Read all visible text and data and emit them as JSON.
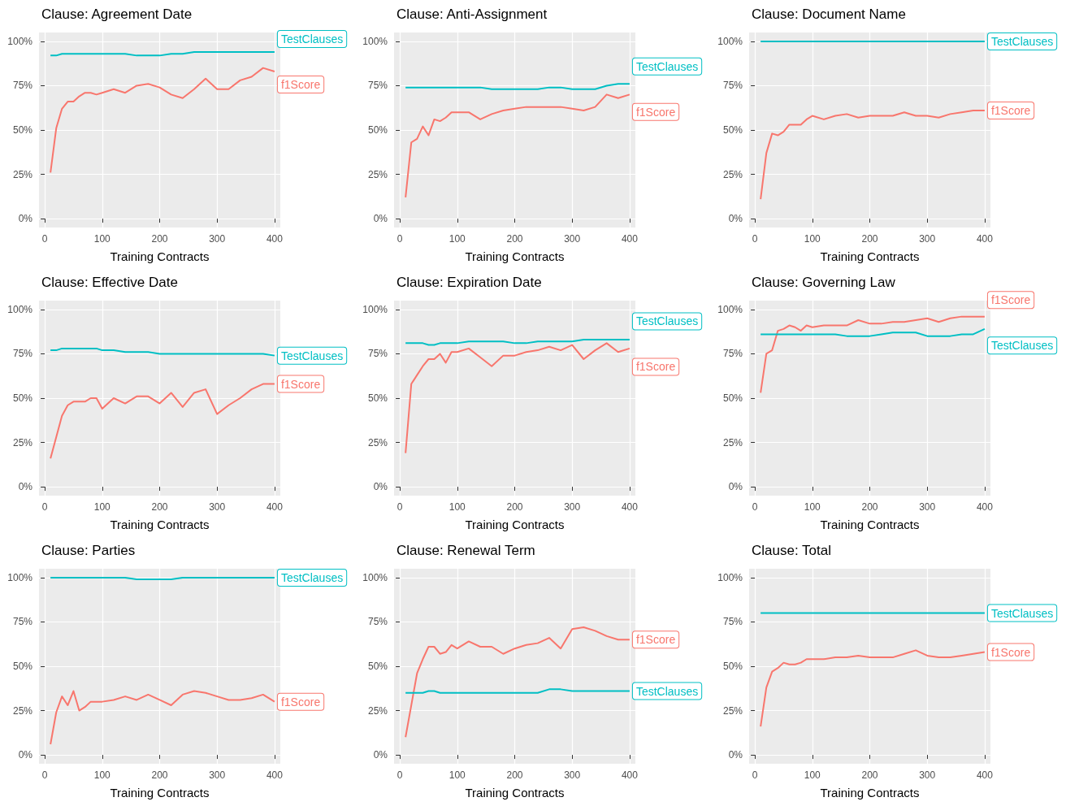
{
  "chart_data": [
    {
      "type": "line",
      "title": "Clause: Agreement Date",
      "xlabel": "Training Contracts",
      "x": [
        10,
        20,
        30,
        40,
        50,
        60,
        70,
        80,
        90,
        100,
        120,
        140,
        160,
        180,
        200,
        220,
        240,
        260,
        280,
        300,
        320,
        340,
        360,
        380,
        400
      ],
      "xlim": [
        -10,
        410
      ],
      "xticks": [
        0,
        100,
        200,
        300,
        400
      ],
      "ylim": [
        -5,
        105
      ],
      "yticks": [
        {
          "value": 0,
          "label": "0%"
        },
        {
          "value": 25,
          "label": "25%"
        },
        {
          "value": 50,
          "label": "50%"
        },
        {
          "value": 75,
          "label": "75%"
        },
        {
          "value": 100,
          "label": "100%"
        }
      ],
      "grid": true,
      "legend": false,
      "marker": "none",
      "series": [
        {
          "name": "f1Score",
          "color": "#f8766d",
          "values": [
            26,
            51,
            62,
            66,
            66,
            69,
            71,
            71,
            70,
            71,
            73,
            71,
            75,
            76,
            74,
            70,
            68,
            73,
            79,
            73,
            73,
            78,
            80,
            85,
            83
          ]
        },
        {
          "name": "TestClauses",
          "color": "#00bfc4",
          "values": [
            92,
            92,
            93,
            93,
            93,
            93,
            93,
            93,
            93,
            93,
            93,
            93,
            92,
            92,
            92,
            93,
            93,
            94,
            94,
            94,
            94,
            94,
            94,
            94,
            94
          ]
        }
      ]
    },
    {
      "type": "line",
      "title": "Clause: Anti-Assignment",
      "xlabel": "Training Contracts",
      "x": [
        10,
        20,
        30,
        40,
        50,
        60,
        70,
        80,
        90,
        100,
        120,
        140,
        160,
        180,
        200,
        220,
        240,
        260,
        280,
        300,
        320,
        340,
        360,
        380,
        400
      ],
      "xlim": [
        -10,
        410
      ],
      "xticks": [
        0,
        100,
        200,
        300,
        400
      ],
      "ylim": [
        -5,
        105
      ],
      "yticks": [
        {
          "value": 0,
          "label": "0%"
        },
        {
          "value": 25,
          "label": "25%"
        },
        {
          "value": 50,
          "label": "50%"
        },
        {
          "value": 75,
          "label": "75%"
        },
        {
          "value": 100,
          "label": "100%"
        }
      ],
      "grid": true,
      "legend": false,
      "marker": "none",
      "series": [
        {
          "name": "f1Score",
          "color": "#f8766d",
          "values": [
            12,
            43,
            45,
            52,
            47,
            56,
            55,
            57,
            60,
            60,
            60,
            56,
            59,
            61,
            62,
            63,
            63,
            63,
            63,
            62,
            61,
            63,
            70,
            68,
            70
          ]
        },
        {
          "name": "TestClauses",
          "color": "#00bfc4",
          "values": [
            74,
            74,
            74,
            74,
            74,
            74,
            74,
            74,
            74,
            74,
            74,
            74,
            73,
            73,
            73,
            73,
            73,
            74,
            74,
            73,
            73,
            73,
            75,
            76,
            76
          ]
        }
      ]
    },
    {
      "type": "line",
      "title": "Clause: Document Name",
      "xlabel": "Training Contracts",
      "x": [
        10,
        20,
        30,
        40,
        50,
        60,
        70,
        80,
        90,
        100,
        120,
        140,
        160,
        180,
        200,
        220,
        240,
        260,
        280,
        300,
        320,
        340,
        360,
        380,
        400
      ],
      "xlim": [
        -10,
        410
      ],
      "xticks": [
        0,
        100,
        200,
        300,
        400
      ],
      "ylim": [
        -5,
        105
      ],
      "yticks": [
        {
          "value": 0,
          "label": "0%"
        },
        {
          "value": 25,
          "label": "25%"
        },
        {
          "value": 50,
          "label": "50%"
        },
        {
          "value": 75,
          "label": "75%"
        },
        {
          "value": 100,
          "label": "100%"
        }
      ],
      "grid": true,
      "legend": false,
      "marker": "none",
      "series": [
        {
          "name": "f1Score",
          "color": "#f8766d",
          "values": [
            11,
            37,
            48,
            47,
            49,
            53,
            53,
            53,
            56,
            58,
            56,
            58,
            59,
            57,
            58,
            58,
            58,
            60,
            58,
            58,
            57,
            59,
            60,
            61,
            61
          ]
        },
        {
          "name": "TestClauses",
          "color": "#00bfc4",
          "values": [
            100,
            100,
            100,
            100,
            100,
            100,
            100,
            100,
            100,
            100,
            100,
            100,
            100,
            100,
            100,
            100,
            100,
            100,
            100,
            100,
            100,
            100,
            100,
            100,
            100
          ]
        }
      ]
    },
    {
      "type": "line",
      "title": "Clause: Effective Date",
      "xlabel": "Training Contracts",
      "x": [
        10,
        20,
        30,
        40,
        50,
        60,
        70,
        80,
        90,
        100,
        120,
        140,
        160,
        180,
        200,
        220,
        240,
        260,
        280,
        300,
        320,
        340,
        360,
        380,
        400
      ],
      "xlim": [
        -10,
        410
      ],
      "xticks": [
        0,
        100,
        200,
        300,
        400
      ],
      "ylim": [
        -5,
        105
      ],
      "yticks": [
        {
          "value": 0,
          "label": "0%"
        },
        {
          "value": 25,
          "label": "25%"
        },
        {
          "value": 50,
          "label": "50%"
        },
        {
          "value": 75,
          "label": "75%"
        },
        {
          "value": 100,
          "label": "100%"
        }
      ],
      "grid": true,
      "legend": false,
      "marker": "none",
      "series": [
        {
          "name": "f1Score",
          "color": "#f8766d",
          "values": [
            16,
            28,
            40,
            46,
            48,
            48,
            48,
            50,
            50,
            44,
            50,
            47,
            51,
            51,
            47,
            53,
            45,
            53,
            55,
            41,
            46,
            50,
            55,
            58,
            58
          ]
        },
        {
          "name": "TestClauses",
          "color": "#00bfc4",
          "values": [
            77,
            77,
            78,
            78,
            78,
            78,
            78,
            78,
            78,
            77,
            77,
            76,
            76,
            76,
            75,
            75,
            75,
            75,
            75,
            75,
            75,
            75,
            75,
            75,
            74
          ]
        }
      ]
    },
    {
      "type": "line",
      "title": "Clause: Expiration Date",
      "xlabel": "Training Contracts",
      "x": [
        10,
        20,
        30,
        40,
        50,
        60,
        70,
        80,
        90,
        100,
        120,
        140,
        160,
        180,
        200,
        220,
        240,
        260,
        280,
        300,
        320,
        340,
        360,
        380,
        400
      ],
      "xlim": [
        -10,
        410
      ],
      "xticks": [
        0,
        100,
        200,
        300,
        400
      ],
      "ylim": [
        -5,
        105
      ],
      "yticks": [
        {
          "value": 0,
          "label": "0%"
        },
        {
          "value": 25,
          "label": "25%"
        },
        {
          "value": 50,
          "label": "50%"
        },
        {
          "value": 75,
          "label": "75%"
        },
        {
          "value": 100,
          "label": "100%"
        }
      ],
      "grid": true,
      "legend": false,
      "marker": "none",
      "series": [
        {
          "name": "f1Score",
          "color": "#f8766d",
          "values": [
            19,
            58,
            63,
            68,
            72,
            72,
            75,
            70,
            76,
            76,
            78,
            73,
            68,
            74,
            74,
            76,
            77,
            79,
            77,
            80,
            72,
            77,
            81,
            76,
            78
          ]
        },
        {
          "name": "TestClauses",
          "color": "#00bfc4",
          "values": [
            81,
            81,
            81,
            81,
            80,
            80,
            81,
            81,
            81,
            81,
            82,
            82,
            82,
            82,
            81,
            81,
            82,
            82,
            82,
            82,
            83,
            83,
            83,
            83,
            83
          ]
        }
      ]
    },
    {
      "type": "line",
      "title": "Clause: Governing Law",
      "xlabel": "Training Contracts",
      "x": [
        10,
        20,
        30,
        40,
        50,
        60,
        70,
        80,
        90,
        100,
        120,
        140,
        160,
        180,
        200,
        220,
        240,
        260,
        280,
        300,
        320,
        340,
        360,
        380,
        400
      ],
      "xlim": [
        -10,
        410
      ],
      "xticks": [
        0,
        100,
        200,
        300,
        400
      ],
      "ylim": [
        -5,
        105
      ],
      "yticks": [
        {
          "value": 0,
          "label": "0%"
        },
        {
          "value": 25,
          "label": "25%"
        },
        {
          "value": 50,
          "label": "50%"
        },
        {
          "value": 75,
          "label": "75%"
        },
        {
          "value": 100,
          "label": "100%"
        }
      ],
      "grid": true,
      "legend": false,
      "marker": "none",
      "series": [
        {
          "name": "f1Score",
          "color": "#f8766d",
          "values": [
            53,
            75,
            77,
            88,
            89,
            91,
            90,
            88,
            91,
            90,
            91,
            91,
            91,
            94,
            92,
            92,
            93,
            93,
            94,
            95,
            93,
            95,
            96,
            96,
            96
          ]
        },
        {
          "name": "TestClauses",
          "color": "#00bfc4",
          "values": [
            86,
            86,
            86,
            86,
            86,
            86,
            86,
            86,
            86,
            86,
            86,
            86,
            85,
            85,
            85,
            86,
            87,
            87,
            87,
            85,
            85,
            85,
            86,
            86,
            89
          ]
        }
      ]
    },
    {
      "type": "line",
      "title": "Clause: Parties",
      "xlabel": "Training Contracts",
      "x": [
        10,
        20,
        30,
        40,
        50,
        60,
        70,
        80,
        90,
        100,
        120,
        140,
        160,
        180,
        200,
        220,
        240,
        260,
        280,
        300,
        320,
        340,
        360,
        380,
        400
      ],
      "xlim": [
        -10,
        410
      ],
      "xticks": [
        0,
        100,
        200,
        300,
        400
      ],
      "ylim": [
        -5,
        105
      ],
      "yticks": [
        {
          "value": 0,
          "label": "0%"
        },
        {
          "value": 25,
          "label": "25%"
        },
        {
          "value": 50,
          "label": "50%"
        },
        {
          "value": 75,
          "label": "75%"
        },
        {
          "value": 100,
          "label": "100%"
        }
      ],
      "grid": true,
      "legend": false,
      "marker": "none",
      "series": [
        {
          "name": "f1Score",
          "color": "#f8766d",
          "values": [
            6,
            24,
            33,
            28,
            36,
            25,
            27,
            30,
            30,
            30,
            31,
            33,
            31,
            34,
            31,
            28,
            34,
            36,
            35,
            33,
            31,
            31,
            32,
            34,
            30
          ]
        },
        {
          "name": "TestClauses",
          "color": "#00bfc4",
          "values": [
            100,
            100,
            100,
            100,
            100,
            100,
            100,
            100,
            100,
            100,
            100,
            100,
            99,
            99,
            99,
            99,
            100,
            100,
            100,
            100,
            100,
            100,
            100,
            100,
            100
          ]
        }
      ]
    },
    {
      "type": "line",
      "title": "Clause: Renewal Term",
      "xlabel": "Training Contracts",
      "x": [
        10,
        20,
        30,
        40,
        50,
        60,
        70,
        80,
        90,
        100,
        120,
        140,
        160,
        180,
        200,
        220,
        240,
        260,
        280,
        300,
        320,
        340,
        360,
        380,
        400
      ],
      "xlim": [
        -10,
        410
      ],
      "xticks": [
        0,
        100,
        200,
        300,
        400
      ],
      "ylim": [
        -5,
        105
      ],
      "yticks": [
        {
          "value": 0,
          "label": "0%"
        },
        {
          "value": 25,
          "label": "25%"
        },
        {
          "value": 50,
          "label": "50%"
        },
        {
          "value": 75,
          "label": "75%"
        },
        {
          "value": 100,
          "label": "100%"
        }
      ],
      "grid": true,
      "legend": false,
      "marker": "none",
      "series": [
        {
          "name": "f1Score",
          "color": "#f8766d",
          "values": [
            10,
            28,
            46,
            54,
            61,
            61,
            57,
            58,
            62,
            60,
            64,
            61,
            61,
            57,
            60,
            62,
            63,
            66,
            60,
            71,
            72,
            70,
            67,
            65,
            65
          ]
        },
        {
          "name": "TestClauses",
          "color": "#00bfc4",
          "values": [
            35,
            35,
            35,
            35,
            36,
            36,
            35,
            35,
            35,
            35,
            35,
            35,
            35,
            35,
            35,
            35,
            35,
            37,
            37,
            36,
            36,
            36,
            36,
            36,
            36
          ]
        }
      ]
    },
    {
      "type": "line",
      "title": "Clause: Total",
      "xlabel": "Training Contracts",
      "x": [
        10,
        20,
        30,
        40,
        50,
        60,
        70,
        80,
        90,
        100,
        120,
        140,
        160,
        180,
        200,
        220,
        240,
        260,
        280,
        300,
        320,
        340,
        360,
        380,
        400
      ],
      "xlim": [
        -10,
        410
      ],
      "xticks": [
        0,
        100,
        200,
        300,
        400
      ],
      "ylim": [
        -5,
        105
      ],
      "yticks": [
        {
          "value": 0,
          "label": "0%"
        },
        {
          "value": 25,
          "label": "25%"
        },
        {
          "value": 50,
          "label": "50%"
        },
        {
          "value": 75,
          "label": "75%"
        },
        {
          "value": 100,
          "label": "100%"
        }
      ],
      "grid": true,
      "legend": false,
      "marker": "none",
      "series": [
        {
          "name": "f1Score",
          "color": "#f8766d",
          "values": [
            16,
            38,
            47,
            49,
            52,
            51,
            51,
            52,
            54,
            54,
            54,
            55,
            55,
            56,
            55,
            55,
            55,
            57,
            59,
            56,
            55,
            55,
            56,
            57,
            58
          ]
        },
        {
          "name": "TestClauses",
          "color": "#00bfc4",
          "values": [
            80,
            80,
            80,
            80,
            80,
            80,
            80,
            80,
            80,
            80,
            80,
            80,
            80,
            80,
            80,
            80,
            80,
            80,
            80,
            80,
            80,
            80,
            80,
            80,
            80
          ]
        }
      ]
    }
  ]
}
